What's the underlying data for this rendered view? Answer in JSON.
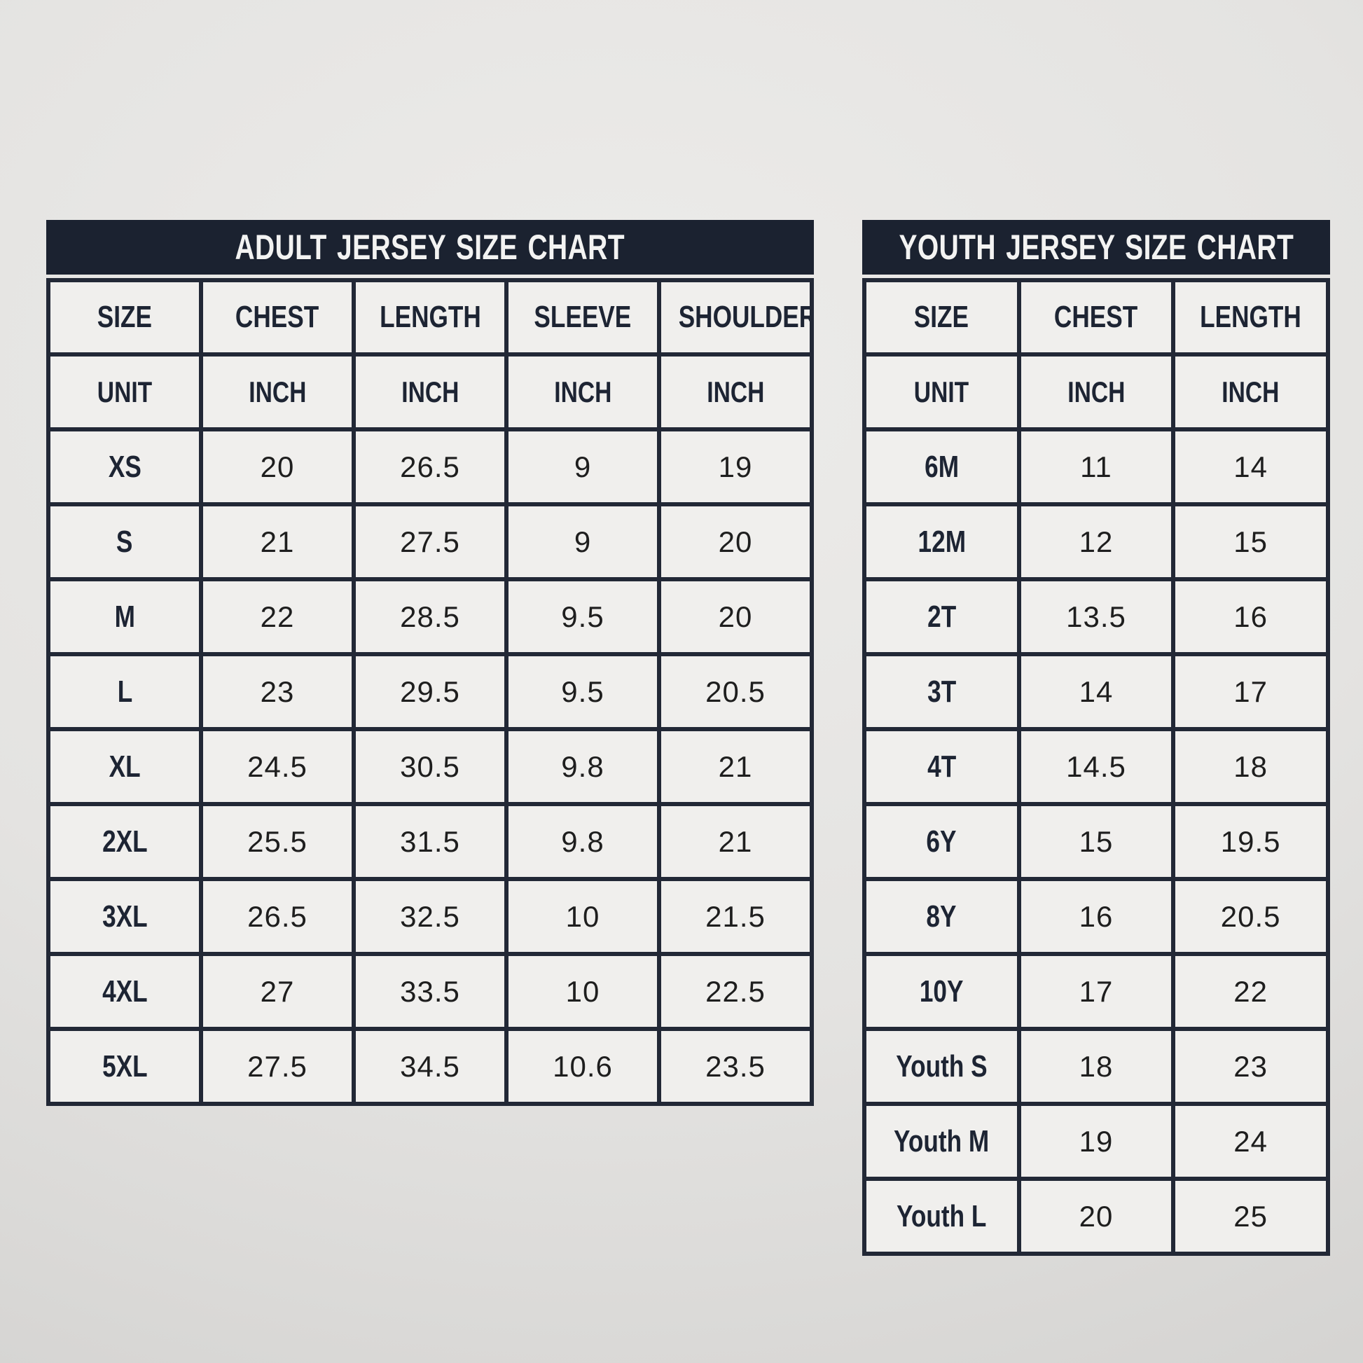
{
  "colors": {
    "navy_band": "#1b2230",
    "grid_border": "#222836",
    "cell_background": "#f0efed",
    "title_text": "#f3f3f2",
    "label_text": "#1d2433",
    "number_text": "#1e1e1e",
    "background_center": "#edecea",
    "background_edge": "#d2d1cf"
  },
  "chart_data": [
    {
      "type": "table",
      "title": "ADULT JERSEY SIZE CHART",
      "columns": [
        "SIZE",
        "CHEST",
        "LENGTH",
        "SLEEVE",
        "SHOULDER"
      ],
      "unit_row": [
        "UNIT",
        "INCH",
        "INCH",
        "INCH",
        "INCH"
      ],
      "rows": [
        [
          "XS",
          "20",
          "26.5",
          "9",
          "19"
        ],
        [
          "S",
          "21",
          "27.5",
          "9",
          "20"
        ],
        [
          "M",
          "22",
          "28.5",
          "9.5",
          "20"
        ],
        [
          "L",
          "23",
          "29.5",
          "9.5",
          "20.5"
        ],
        [
          "XL",
          "24.5",
          "30.5",
          "9.8",
          "21"
        ],
        [
          "2XL",
          "25.5",
          "31.5",
          "9.8",
          "21"
        ],
        [
          "3XL",
          "26.5",
          "32.5",
          "10",
          "21.5"
        ],
        [
          "4XL",
          "27",
          "33.5",
          "10",
          "22.5"
        ],
        [
          "5XL",
          "27.5",
          "34.5",
          "10.6",
          "23.5"
        ]
      ]
    },
    {
      "type": "table",
      "title": "YOUTH JERSEY SIZE CHART",
      "columns": [
        "SIZE",
        "CHEST",
        "LENGTH"
      ],
      "unit_row": [
        "UNIT",
        "INCH",
        "INCH"
      ],
      "rows": [
        [
          "6M",
          "11",
          "14"
        ],
        [
          "12M",
          "12",
          "15"
        ],
        [
          "2T",
          "13.5",
          "16"
        ],
        [
          "3T",
          "14",
          "17"
        ],
        [
          "4T",
          "14.5",
          "18"
        ],
        [
          "6Y",
          "15",
          "19.5"
        ],
        [
          "8Y",
          "16",
          "20.5"
        ],
        [
          "10Y",
          "17",
          "22"
        ],
        [
          "Youth S",
          "18",
          "23"
        ],
        [
          "Youth M",
          "19",
          "24"
        ],
        [
          "Youth L",
          "20",
          "25"
        ]
      ]
    }
  ]
}
